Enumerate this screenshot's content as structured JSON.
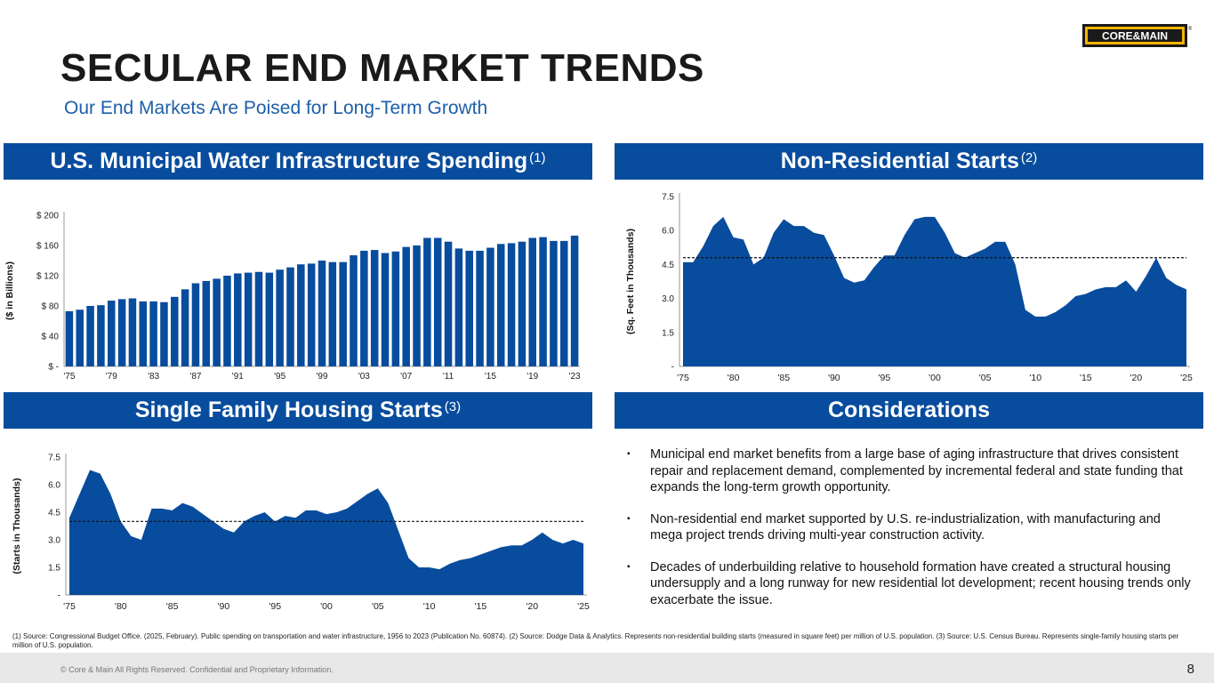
{
  "title": "SECULAR END MARKET TRENDS",
  "subtitle": "Our End Markets Are Poised for Long-Term Growth",
  "logo": {
    "text": "CORE&MAIN",
    "registered": "®"
  },
  "banners": {
    "municipal": {
      "label": "U.S. Municipal Water Infrastructure Spending",
      "note": "(1)"
    },
    "nonres": {
      "label": "Non-Residential Starts",
      "note": "(2)"
    },
    "singlefamily": {
      "label": "Single Family Housing Starts",
      "note": "(3)"
    },
    "considerations": {
      "label": "Considerations",
      "note": ""
    }
  },
  "considerations": [
    "Municipal end market benefits from a large base of aging infrastructure that drives consistent repair and replacement demand, complemented by incremental federal and state funding that expands the long-term growth opportunity.",
    "Non-residential end market supported by U.S. re-industrialization, with manufacturing and mega project trends driving multi-year construction activity.",
    "Decades of underbuilding relative to household formation have created a structural housing undersupply and a long runway for new residential lot development; recent housing trends only exacerbate the issue."
  ],
  "bullet_glyph": "▪",
  "footnote": "(1) Source: Congressional Budget Office. (2025, February). Public spending on transportation and water infrastructure, 1956 to 2023 (Publication No. 60874). (2) Source: Dodge Data & Analytics. Represents non-residential building starts (measured in square feet) per million of U.S. population. (3) Source: U.S. Census Bureau. Represents single-family housing starts per million of U.S. population.",
  "copyright": "© Core & Main  All Rights Reserved. Confidential and Proprietary Information.",
  "page_number": "8",
  "colors": {
    "brand_blue": "#084c9d",
    "subtitle_blue": "#1d5fa8",
    "logo_yellow": "#f5b400"
  },
  "chart_data": [
    {
      "id": "municipal",
      "type": "bar",
      "ylabel": "($ in Billions)",
      "ylim": [
        0,
        200
      ],
      "yticks": [
        0,
        40,
        80,
        120,
        160,
        200
      ],
      "ytick_labels": [
        "$ -",
        "$ 40",
        "$ 80",
        "$ 120",
        "$ 160",
        "$ 200"
      ],
      "categories": [
        "1975",
        "1976",
        "1977",
        "1978",
        "1979",
        "1980",
        "1981",
        "1982",
        "1983",
        "1984",
        "1985",
        "1986",
        "1987",
        "1988",
        "1989",
        "1990",
        "1991",
        "1992",
        "1993",
        "1994",
        "1995",
        "1996",
        "1997",
        "1998",
        "1999",
        "2000",
        "2001",
        "2002",
        "2003",
        "2004",
        "2005",
        "2006",
        "2007",
        "2008",
        "2009",
        "2010",
        "2011",
        "2012",
        "2013",
        "2014",
        "2015",
        "2016",
        "2017",
        "2018",
        "2019",
        "2020",
        "2021",
        "2022",
        "2023"
      ],
      "values": [
        73,
        75,
        80,
        81,
        87,
        89,
        90,
        86,
        86,
        85,
        92,
        102,
        110,
        113,
        116,
        120,
        123,
        124,
        125,
        124,
        128,
        131,
        135,
        136,
        140,
        138,
        138,
        147,
        153,
        154,
        150,
        152,
        158,
        160,
        170,
        170,
        165,
        156,
        153,
        153,
        157,
        162,
        163,
        165,
        170,
        171,
        166,
        166,
        173
      ],
      "xtick_labels": [
        "'75",
        "'79",
        "'83",
        "'87",
        "'91",
        "'95",
        "'99",
        "'03",
        "'07",
        "'11",
        "'15",
        "'19",
        "'23"
      ]
    },
    {
      "id": "nonres",
      "type": "area",
      "ylabel": "(Sq. Feet in Thousands)",
      "ylim": [
        0,
        7.5
      ],
      "yticks": [
        0,
        1.5,
        3.0,
        4.5,
        6.0,
        7.5
      ],
      "ytick_labels": [
        "-",
        "1.5",
        "3.0",
        "4.5",
        "6.0",
        "7.5"
      ],
      "x": [
        1975,
        1976,
        1977,
        1978,
        1979,
        1980,
        1981,
        1982,
        1983,
        1984,
        1985,
        1986,
        1987,
        1988,
        1989,
        1990,
        1991,
        1992,
        1993,
        1994,
        1995,
        1996,
        1997,
        1998,
        1999,
        2000,
        2001,
        2002,
        2003,
        2004,
        2005,
        2006,
        2007,
        2008,
        2009,
        2010,
        2011,
        2012,
        2013,
        2014,
        2015,
        2016,
        2017,
        2018,
        2019,
        2020,
        2021,
        2022,
        2023,
        2024,
        2025
      ],
      "values": [
        4.6,
        4.6,
        5.3,
        6.2,
        6.6,
        5.7,
        5.6,
        4.5,
        4.8,
        5.9,
        6.5,
        6.2,
        6.2,
        5.9,
        5.8,
        4.9,
        3.9,
        3.7,
        3.8,
        4.4,
        4.9,
        4.9,
        5.8,
        6.5,
        6.6,
        6.6,
        5.9,
        5.0,
        4.8,
        5.0,
        5.2,
        5.5,
        5.5,
        4.5,
        2.5,
        2.2,
        2.2,
        2.4,
        2.7,
        3.1,
        3.2,
        3.4,
        3.5,
        3.5,
        3.8,
        3.3,
        4.0,
        4.8,
        3.9,
        3.6,
        3.4
      ],
      "average": 4.8,
      "xtick_labels": [
        "'75",
        "'80",
        "'85",
        "'90",
        "'95",
        "'00",
        "'05",
        "'10",
        "'15",
        "'20",
        "'25"
      ]
    },
    {
      "id": "singlefamily",
      "type": "area",
      "ylabel": "(Starts in Thousands)",
      "ylim": [
        0,
        7.5
      ],
      "yticks": [
        0,
        1.5,
        3.0,
        4.5,
        6.0,
        7.5
      ],
      "ytick_labels": [
        "-",
        "1.5",
        "3.0",
        "4.5",
        "6.0",
        "7.5"
      ],
      "x": [
        1975,
        1976,
        1977,
        1978,
        1979,
        1980,
        1981,
        1982,
        1983,
        1984,
        1985,
        1986,
        1987,
        1988,
        1989,
        1990,
        1991,
        1992,
        1993,
        1994,
        1995,
        1996,
        1997,
        1998,
        1999,
        2000,
        2001,
        2002,
        2003,
        2004,
        2005,
        2006,
        2007,
        2008,
        2009,
        2010,
        2011,
        2012,
        2013,
        2014,
        2015,
        2016,
        2017,
        2018,
        2019,
        2020,
        2021,
        2022,
        2023,
        2024,
        2025
      ],
      "values": [
        4.2,
        5.5,
        6.8,
        6.6,
        5.5,
        4.0,
        3.2,
        3.0,
        4.7,
        4.7,
        4.6,
        5.0,
        4.8,
        4.4,
        4.0,
        3.6,
        3.4,
        4.0,
        4.3,
        4.5,
        4.0,
        4.3,
        4.2,
        4.6,
        4.6,
        4.4,
        4.5,
        4.7,
        5.1,
        5.5,
        5.8,
        5.0,
        3.5,
        2.0,
        1.5,
        1.5,
        1.4,
        1.7,
        1.9,
        2.0,
        2.2,
        2.4,
        2.6,
        2.7,
        2.7,
        3.0,
        3.4,
        3.0,
        2.8,
        3.0,
        2.8
      ],
      "average": 4.0,
      "xtick_labels": [
        "'75",
        "'80",
        "'85",
        "'90",
        "'95",
        "'00",
        "'05",
        "'10",
        "'15",
        "'20",
        "'25"
      ]
    }
  ]
}
